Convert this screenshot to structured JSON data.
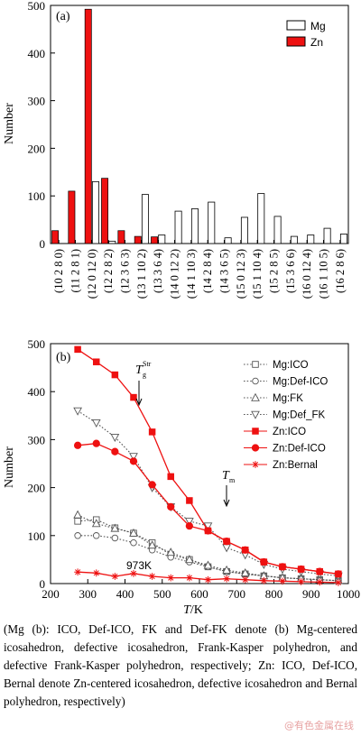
{
  "chart_data": [
    {
      "type": "bar",
      "panel_label": "(a)",
      "ylabel": "Number",
      "ylim": [
        0,
        500
      ],
      "yticks": [
        0,
        100,
        200,
        300,
        400,
        500
      ],
      "categories": [
        "(10 2 8 0)",
        "(11 2 8 1)",
        "(12 0 12 0)",
        "(12 2 8 2)",
        "(12 3 6 3)",
        "(13 1 10 2)",
        "(13 3 6 4)",
        "(14 0 12 2)",
        "(14 1 10 3)",
        "(14 2 8 4)",
        "(14 3 6 5)",
        "(15 0 12 3)",
        "(15 1 10 4)",
        "(15 2 8 5)",
        "(15 3 6 6)",
        "(16 0 12 4)",
        "(16 1 10 5)",
        "(16 2 8 6)"
      ],
      "series": [
        {
          "name": "Mg",
          "color": "#ffffff",
          "values": [
            0,
            0,
            130,
            5,
            0,
            103,
            18,
            68,
            73,
            87,
            12,
            55,
            105,
            57,
            15,
            18,
            32,
            20
          ]
        },
        {
          "name": "Zn",
          "color": "#ee1111",
          "values": [
            27,
            110,
            492,
            137,
            27,
            15,
            14,
            0,
            0,
            0,
            0,
            0,
            0,
            0,
            0,
            0,
            0,
            0
          ]
        }
      ],
      "legend_position": "top-right"
    },
    {
      "type": "line",
      "panel_label": "(b)",
      "xlabel_italic": "T",
      "xlabel_rest": "/K",
      "ylabel": "Number",
      "xlim": [
        200,
        1000
      ],
      "ylim": [
        0,
        500
      ],
      "xticks": [
        200,
        300,
        400,
        500,
        600,
        700,
        800,
        900,
        1000
      ],
      "yticks": [
        0,
        100,
        200,
        300,
        400,
        500
      ],
      "x": [
        273,
        323,
        373,
        423,
        473,
        523,
        573,
        623,
        673,
        723,
        773,
        823,
        873,
        923,
        973
      ],
      "series": [
        {
          "name": "Mg:ICO",
          "color": "#555555",
          "marker": "square-open",
          "dash": "dotted",
          "values": [
            130,
            133,
            116,
            105,
            85,
            60,
            50,
            35,
            25,
            20,
            16,
            12,
            10,
            8,
            6
          ]
        },
        {
          "name": "Mg:Def-ICO",
          "color": "#555555",
          "marker": "circle-open",
          "dash": "dotted",
          "values": [
            100,
            100,
            95,
            85,
            70,
            55,
            45,
            35,
            25,
            20,
            16,
            12,
            10,
            8,
            6
          ]
        },
        {
          "name": "Mg:FK",
          "color": "#555555",
          "marker": "triangle-up-open",
          "dash": "dotted",
          "values": [
            143,
            125,
            115,
            105,
            80,
            65,
            50,
            38,
            28,
            22,
            16,
            12,
            10,
            8,
            6
          ]
        },
        {
          "name": "Mg:Def_FK",
          "color": "#555555",
          "marker": "triangle-down-open",
          "dash": "dotted",
          "values": [
            360,
            335,
            305,
            265,
            200,
            160,
            130,
            120,
            75,
            60,
            40,
            30,
            25,
            20,
            16
          ]
        },
        {
          "name": "Zn:ICO",
          "color": "#ee1111",
          "marker": "square-filled",
          "dash": "solid",
          "values": [
            488,
            462,
            435,
            388,
            316,
            223,
            173,
            110,
            88,
            70,
            45,
            35,
            30,
            25,
            20
          ]
        },
        {
          "name": "Zn:Def-ICO",
          "color": "#ee1111",
          "marker": "circle-filled",
          "dash": "solid",
          "values": [
            288,
            292,
            275,
            255,
            206,
            160,
            120,
            110,
            88,
            70,
            45,
            35,
            30,
            25,
            20
          ]
        },
        {
          "name": "Zn:Bernal",
          "color": "#ee1111",
          "marker": "star",
          "dash": "solid",
          "values": [
            24,
            22,
            15,
            21,
            15,
            12,
            12,
            8,
            10,
            8,
            6,
            5,
            4,
            3,
            2
          ]
        }
      ],
      "annotations": [
        {
          "text_italic": "T",
          "sup": "Str",
          "sub": "g",
          "x": 423,
          "arrow_from": 460,
          "arrow_to": 395
        },
        {
          "text_italic": "T",
          "sub": "m",
          "x": 623,
          "arrow_from": 200,
          "arrow_to": 128
        },
        {
          "text": "973K",
          "x": 430,
          "y": 68
        }
      ],
      "legend_position": "top-right"
    }
  ],
  "caption": "(Mg (b): ICO, Def-ICO, FK and Def-FK denote (b) Mg-centered icosahedron, defective icosahedron, Frank-Kasper polyhedron, and defective Frank-Kasper polyhedron, respectively; Zn: ICO, Def-ICO, Bernal denote Zn-centered icosahedron, defective icosahedron and Bernal polyhedron, respectively)",
  "watermark": "@有色金属在线"
}
